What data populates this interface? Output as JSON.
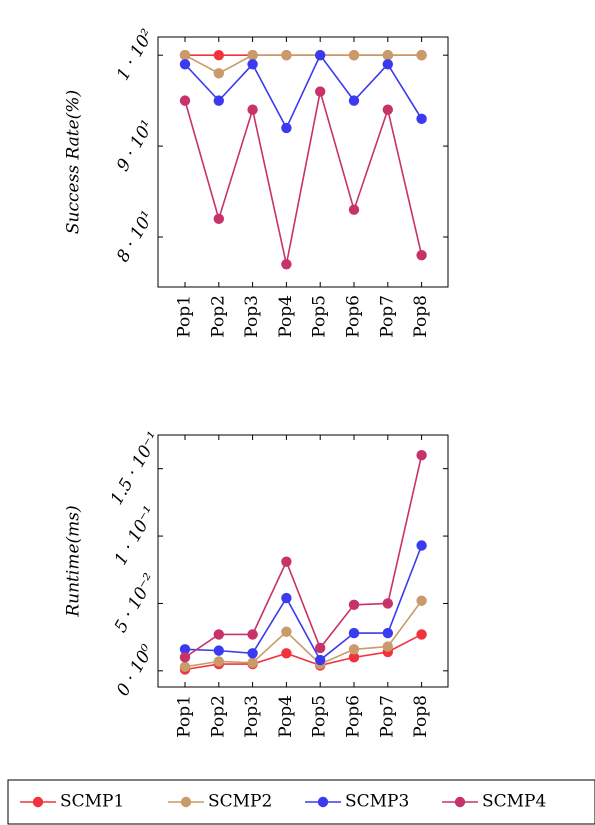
{
  "legend": [
    {
      "name": "SCMP1",
      "color": "#f2323c"
    },
    {
      "name": "SCMP2",
      "color": "#c99a6a"
    },
    {
      "name": "SCMP3",
      "color": "#3a3af0"
    },
    {
      "name": "SCMP4",
      "color": "#c8326a"
    }
  ],
  "chart_data": [
    {
      "type": "line",
      "ylabel": "Success Rate(%)",
      "categories": [
        "Pop1",
        "Pop2",
        "Pop3",
        "Pop4",
        "Pop5",
        "Pop6",
        "Pop7",
        "Pop8"
      ],
      "ylim": [
        74.5,
        102
      ],
      "yticks": [
        {
          "value": 80,
          "label": "8 · 10¹"
        },
        {
          "value": 90,
          "label": "9 · 10¹"
        },
        {
          "value": 100,
          "label": "1 · 10²"
        }
      ],
      "series": [
        {
          "name": "SCMP1",
          "color": "#f2323c",
          "values": [
            100,
            100,
            100,
            100,
            100,
            100,
            100,
            100
          ]
        },
        {
          "name": "SCMP2",
          "color": "#c99a6a",
          "values": [
            100,
            98,
            100,
            100,
            100,
            100,
            100,
            100
          ]
        },
        {
          "name": "SCMP3",
          "color": "#3a3af0",
          "values": [
            99,
            95,
            99,
            92,
            100,
            95,
            99,
            93
          ]
        },
        {
          "name": "SCMP4",
          "color": "#c8326a",
          "values": [
            95,
            82,
            94,
            77,
            96,
            83,
            94,
            78
          ]
        }
      ]
    },
    {
      "type": "line",
      "ylabel": "Runtime(ms)",
      "categories": [
        "Pop1",
        "Pop2",
        "Pop3",
        "Pop4",
        "Pop5",
        "Pop6",
        "Pop7",
        "Pop8"
      ],
      "ylim": [
        -0.012,
        0.175
      ],
      "yticks": [
        {
          "value": 0,
          "label": "0 · 10⁰"
        },
        {
          "value": 0.05,
          "label": "5 · 10⁻²"
        },
        {
          "value": 0.1,
          "label": "1 · 10⁻¹"
        },
        {
          "value": 0.15,
          "label": "1.5 · 10⁻¹"
        }
      ],
      "series": [
        {
          "name": "SCMP1",
          "color": "#f2323c",
          "values": [
            0.001,
            0.005,
            0.005,
            0.013,
            0.004,
            0.01,
            0.014,
            0.027
          ]
        },
        {
          "name": "SCMP2",
          "color": "#c99a6a",
          "values": [
            0.003,
            0.007,
            0.006,
            0.029,
            0.005,
            0.016,
            0.018,
            0.052
          ]
        },
        {
          "name": "SCMP3",
          "color": "#3a3af0",
          "values": [
            0.016,
            0.015,
            0.013,
            0.054,
            0.008,
            0.028,
            0.028,
            0.093
          ]
        },
        {
          "name": "SCMP4",
          "color": "#c8326a",
          "values": [
            0.01,
            0.027,
            0.027,
            0.081,
            0.017,
            0.049,
            0.05,
            0.16
          ]
        }
      ]
    }
  ]
}
